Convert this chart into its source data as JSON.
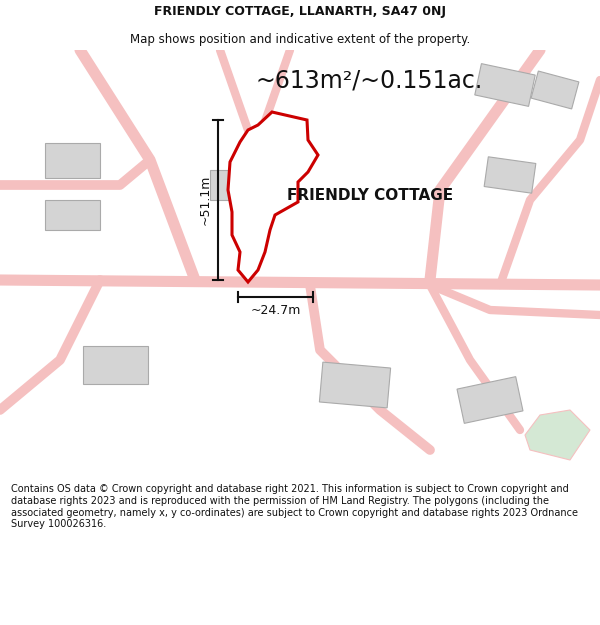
{
  "title_line1": "FRIENDLY COTTAGE, LLANARTH, SA47 0NJ",
  "title_line2": "Map shows position and indicative extent of the property.",
  "area_text": "~613m²/~0.151ac.",
  "height_label": "~51.1m",
  "width_label": "~24.7m",
  "property_label": "FRIENDLY COTTAGE",
  "footer_text": "Contains OS data © Crown copyright and database right 2021. This information is subject to Crown copyright and database rights 2023 and is reproduced with the permission of HM Land Registry. The polygons (including the associated geometry, namely x, y co-ordinates) are subject to Crown copyright and database rights 2023 Ordnance Survey 100026316.",
  "bg_color": "#ffffff",
  "map_bg_color": "#ffffff",
  "road_color": "#f5c0c0",
  "building_fill": "#d4d4d4",
  "building_stroke": "#aaaaaa",
  "property_fill": "#ffffff",
  "property_stroke": "#cc0000",
  "dim_line_color": "#111111",
  "green_fill": "#d4e8d4",
  "title_color": "#111111",
  "footer_color": "#111111"
}
